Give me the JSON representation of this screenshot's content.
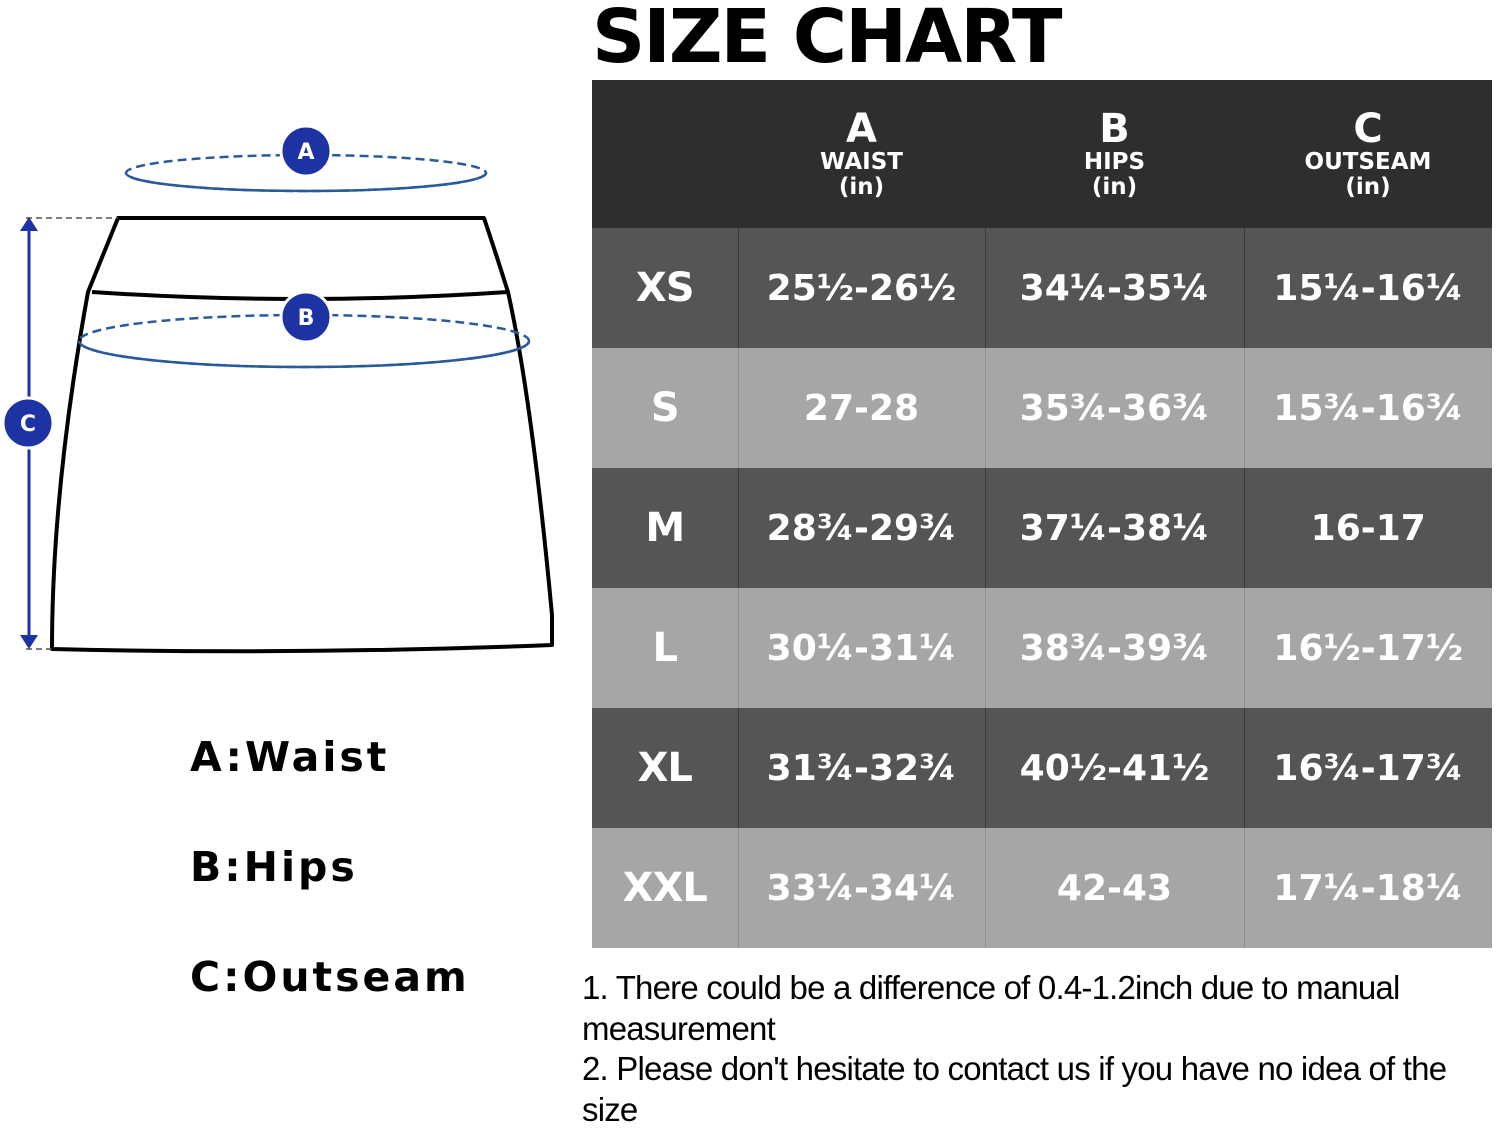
{
  "title": "SIZE CHART",
  "diagram": {
    "markers": [
      {
        "letter": "A"
      },
      {
        "letter": "B"
      },
      {
        "letter": "C"
      }
    ],
    "accent_color": "#1e33a3",
    "dash_color": "#2a5a9a"
  },
  "legend": [
    {
      "label": "A:Waist"
    },
    {
      "label": "B:Hips"
    },
    {
      "label": "C:Outseam"
    }
  ],
  "table": {
    "columns": [
      {
        "letter": "",
        "name": "",
        "unit": ""
      },
      {
        "letter": "A",
        "name": "WAIST",
        "unit": "(in)"
      },
      {
        "letter": "B",
        "name": "HIPS",
        "unit": "(in)"
      },
      {
        "letter": "C",
        "name": "OUTSEAM",
        "unit": "(in)"
      }
    ],
    "rows": [
      {
        "size": "XS",
        "waist": "25½-26½",
        "hips": "34¼-35¼",
        "outseam": "15¼-16¼"
      },
      {
        "size": "S",
        "waist": "27-28",
        "hips": "35¾-36¾",
        "outseam": "15¾-16¾"
      },
      {
        "size": "M",
        "waist": "28¾-29¾",
        "hips": "37¼-38¼",
        "outseam": "16-17"
      },
      {
        "size": "L",
        "waist": "30¼-31¼",
        "hips": "38¾-39¾",
        "outseam": "16½-17½"
      },
      {
        "size": "XL",
        "waist": "31¾-32¾",
        "hips": "40½-41½",
        "outseam": "16¾-17¾"
      },
      {
        "size": "XXL",
        "waist": "33¼-34¼",
        "hips": "42-43",
        "outseam": "17¼-18¼"
      }
    ],
    "colors": {
      "header": "#2e2e2e",
      "dark_row": "#555555",
      "light_row": "#a6a6a6"
    }
  },
  "notes": [
    {
      "text": "1. There could be a difference of 0.4-1.2inch due to manual measurement"
    },
    {
      "text": "2. Please don't hesitate to contact us if you have no idea of the size"
    }
  ]
}
